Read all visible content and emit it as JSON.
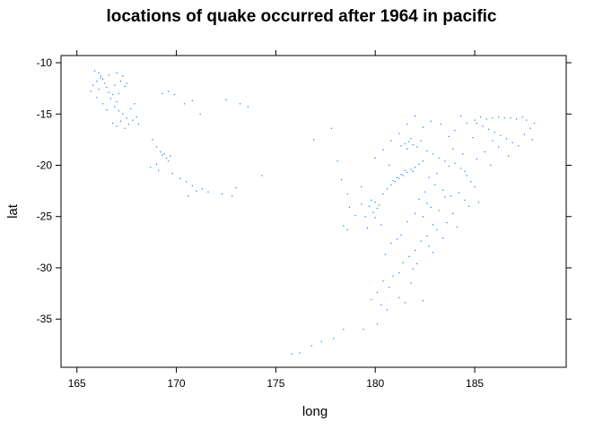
{
  "chart_data": {
    "type": "scatter",
    "title": "locations of quake occurred after 1964 in pacific",
    "xlabel": "long",
    "ylabel": "lat",
    "xlim": [
      164.2,
      189.6
    ],
    "ylim": [
      -39.7,
      -9.3
    ],
    "xticks": [
      165,
      170,
      175,
      180,
      185
    ],
    "yticks": [
      -10,
      -15,
      -20,
      -25,
      -30,
      -35
    ],
    "point_color": "#0080ff",
    "grid": false,
    "series": [
      {
        "points": [
          [
            165.9,
            -10.8
          ],
          [
            166.1,
            -11.0
          ],
          [
            166.2,
            -11.3
          ],
          [
            166.3,
            -11.6
          ],
          [
            166.0,
            -11.8
          ],
          [
            166.4,
            -12.0
          ],
          [
            165.8,
            -12.2
          ],
          [
            166.5,
            -12.4
          ],
          [
            166.1,
            -12.6
          ],
          [
            166.6,
            -12.9
          ],
          [
            166.2,
            -11.5
          ],
          [
            166.6,
            -11.2
          ],
          [
            167.0,
            -11.0
          ],
          [
            167.2,
            -11.8
          ],
          [
            167.4,
            -12.3
          ],
          [
            166.8,
            -13.1
          ],
          [
            166.7,
            -13.5
          ],
          [
            167.0,
            -13.8
          ],
          [
            166.9,
            -14.3
          ],
          [
            167.1,
            -14.7
          ],
          [
            167.3,
            -15.0
          ],
          [
            167.5,
            -15.4
          ],
          [
            167.2,
            -15.7
          ],
          [
            167.6,
            -16.0
          ],
          [
            167.0,
            -16.2
          ],
          [
            166.8,
            -15.9
          ],
          [
            167.8,
            -15.6
          ],
          [
            168.0,
            -15.3
          ],
          [
            167.4,
            -16.4
          ],
          [
            167.9,
            -14.0
          ],
          [
            165.7,
            -12.8
          ],
          [
            166.0,
            -13.4
          ],
          [
            166.3,
            -14.0
          ],
          [
            166.5,
            -14.6
          ],
          [
            167.1,
            -13.0
          ],
          [
            167.5,
            -12.0
          ],
          [
            167.7,
            -14.5
          ],
          [
            168.1,
            -16.0
          ],
          [
            166.9,
            -12.2
          ],
          [
            167.3,
            -11.3
          ],
          [
            168.8,
            -17.5
          ],
          [
            169.0,
            -18.2
          ],
          [
            169.2,
            -18.7
          ],
          [
            169.3,
            -19.0
          ],
          [
            169.5,
            -19.3
          ],
          [
            169.7,
            -19.1
          ],
          [
            169.4,
            -18.9
          ],
          [
            169.6,
            -19.6
          ],
          [
            169.0,
            -19.9
          ],
          [
            168.7,
            -20.2
          ],
          [
            169.1,
            -20.5
          ],
          [
            169.8,
            -20.8
          ],
          [
            170.2,
            -21.3
          ],
          [
            170.5,
            -21.6
          ],
          [
            170.8,
            -22.0
          ],
          [
            171.0,
            -22.5
          ],
          [
            171.3,
            -22.3
          ],
          [
            171.6,
            -22.6
          ],
          [
            170.6,
            -23.0
          ],
          [
            172.3,
            -22.8
          ],
          [
            172.8,
            -23.0
          ],
          [
            169.3,
            -13.0
          ],
          [
            169.6,
            -12.8
          ],
          [
            169.9,
            -13.1
          ],
          [
            170.4,
            -14.0
          ],
          [
            170.8,
            -13.7
          ],
          [
            171.2,
            -15.0
          ],
          [
            172.5,
            -13.6
          ],
          [
            173.2,
            -14.0
          ],
          [
            173.6,
            -14.3
          ],
          [
            174.3,
            -21.0
          ],
          [
            173.0,
            -22.2
          ],
          [
            175.8,
            -38.4
          ],
          [
            176.2,
            -38.3
          ],
          [
            176.8,
            -37.6
          ],
          [
            177.3,
            -37.2
          ],
          [
            177.9,
            -36.9
          ],
          [
            178.4,
            -36.0
          ],
          [
            176.9,
            -17.5
          ],
          [
            177.8,
            -16.4
          ],
          [
            178.1,
            -19.6
          ],
          [
            178.3,
            -21.4
          ],
          [
            178.6,
            -22.8
          ],
          [
            178.7,
            -24.1
          ],
          [
            178.4,
            -25.9
          ],
          [
            178.6,
            -26.3
          ],
          [
            179.0,
            -24.9
          ],
          [
            179.3,
            -23.8
          ],
          [
            179.5,
            -25.0
          ],
          [
            179.7,
            -24.0
          ],
          [
            179.8,
            -23.4
          ],
          [
            180.0,
            -23.6
          ],
          [
            180.1,
            -24.2
          ],
          [
            179.9,
            -24.6
          ],
          [
            180.2,
            -23.9
          ],
          [
            180.0,
            -25.1
          ],
          [
            180.3,
            -25.8
          ],
          [
            179.6,
            -26.1
          ],
          [
            180.4,
            -22.8
          ],
          [
            180.6,
            -22.3
          ],
          [
            180.8,
            -21.9
          ],
          [
            181.0,
            -21.6
          ],
          [
            181.2,
            -21.3
          ],
          [
            181.4,
            -21.0
          ],
          [
            181.6,
            -20.7
          ],
          [
            181.8,
            -20.4
          ],
          [
            182.0,
            -20.2
          ],
          [
            182.2,
            -19.9
          ],
          [
            182.4,
            -19.6
          ],
          [
            181.3,
            -20.9
          ],
          [
            181.5,
            -20.5
          ],
          [
            181.9,
            -20.6
          ],
          [
            181.1,
            -21.2
          ],
          [
            180.9,
            -21.5
          ],
          [
            181.7,
            -17.7
          ],
          [
            181.5,
            -17.9
          ],
          [
            181.9,
            -18.0
          ],
          [
            182.1,
            -18.2
          ],
          [
            181.3,
            -18.1
          ],
          [
            181.6,
            -18.4
          ],
          [
            182.3,
            -17.6
          ],
          [
            181.8,
            -17.4
          ],
          [
            182.6,
            -18.6
          ],
          [
            182.9,
            -18.9
          ],
          [
            183.2,
            -19.3
          ],
          [
            183.5,
            -19.6
          ],
          [
            183.7,
            -20.1
          ],
          [
            184.0,
            -19.8
          ],
          [
            184.3,
            -20.3
          ],
          [
            184.6,
            -21.0
          ],
          [
            184.8,
            -21.6
          ],
          [
            185.0,
            -22.1
          ],
          [
            184.2,
            -22.7
          ],
          [
            184.5,
            -23.4
          ],
          [
            184.7,
            -24.0
          ],
          [
            185.2,
            -23.6
          ],
          [
            183.8,
            -23.0
          ],
          [
            183.4,
            -22.4
          ],
          [
            183.0,
            -21.9
          ],
          [
            182.7,
            -21.2
          ],
          [
            182.5,
            -22.6
          ],
          [
            182.2,
            -23.3
          ],
          [
            182.8,
            -24.1
          ],
          [
            182.4,
            -25.0
          ],
          [
            182.9,
            -25.8
          ],
          [
            183.1,
            -26.3
          ],
          [
            182.6,
            -26.9
          ],
          [
            182.3,
            -27.4
          ],
          [
            182.7,
            -27.9
          ],
          [
            182.0,
            -28.3
          ],
          [
            181.7,
            -28.9
          ],
          [
            181.4,
            -29.5
          ],
          [
            181.9,
            -30.1
          ],
          [
            181.2,
            -30.5
          ],
          [
            180.9,
            -30.8
          ],
          [
            180.4,
            -31.3
          ],
          [
            180.7,
            -31.9
          ],
          [
            180.1,
            -32.4
          ],
          [
            179.8,
            -33.1
          ],
          [
            180.3,
            -33.6
          ],
          [
            180.6,
            -34.1
          ],
          [
            180.1,
            -35.5
          ],
          [
            179.4,
            -36.0
          ],
          [
            181.2,
            -32.9
          ],
          [
            181.5,
            -33.4
          ],
          [
            182.4,
            -33.2
          ],
          [
            181.8,
            -31.5
          ],
          [
            182.1,
            -29.6
          ],
          [
            182.9,
            -28.5
          ],
          [
            183.4,
            -27.1
          ],
          [
            183.6,
            -25.6
          ],
          [
            183.9,
            -24.7
          ],
          [
            184.1,
            -26.0
          ],
          [
            183.2,
            -24.4
          ],
          [
            182.0,
            -24.7
          ],
          [
            181.6,
            -25.5
          ],
          [
            181.3,
            -26.8
          ],
          [
            180.8,
            -27.6
          ],
          [
            180.5,
            -28.7
          ],
          [
            181.1,
            -27.2
          ],
          [
            185.0,
            -15.6
          ],
          [
            185.3,
            -15.3
          ],
          [
            185.6,
            -15.5
          ],
          [
            185.9,
            -15.4
          ],
          [
            186.2,
            -15.3
          ],
          [
            186.5,
            -15.4
          ],
          [
            186.8,
            -15.4
          ],
          [
            187.1,
            -15.5
          ],
          [
            187.4,
            -15.3
          ],
          [
            187.6,
            -15.6
          ],
          [
            185.1,
            -15.9
          ],
          [
            185.4,
            -16.2
          ],
          [
            185.7,
            -16.5
          ],
          [
            186.0,
            -16.8
          ],
          [
            186.3,
            -17.1
          ],
          [
            186.6,
            -17.4
          ],
          [
            186.9,
            -17.8
          ],
          [
            187.2,
            -18.1
          ],
          [
            187.5,
            -17.0
          ],
          [
            187.8,
            -16.4
          ],
          [
            188.0,
            -15.9
          ],
          [
            187.9,
            -17.5
          ],
          [
            184.3,
            -15.2
          ],
          [
            184.6,
            -15.9
          ],
          [
            184.0,
            -16.6
          ],
          [
            183.7,
            -17.2
          ],
          [
            183.3,
            -16.0
          ],
          [
            182.8,
            -15.7
          ],
          [
            182.4,
            -16.3
          ],
          [
            182.0,
            -15.2
          ],
          [
            181.6,
            -16.0
          ],
          [
            181.2,
            -16.9
          ],
          [
            180.8,
            -17.6
          ],
          [
            180.4,
            -18.5
          ],
          [
            180.0,
            -19.3
          ],
          [
            183.9,
            -18.4
          ],
          [
            184.4,
            -18.9
          ],
          [
            185.1,
            -19.4
          ],
          [
            185.8,
            -20.0
          ],
          [
            185.5,
            -18.7
          ],
          [
            186.2,
            -18.2
          ],
          [
            186.7,
            -19.1
          ],
          [
            185.9,
            -17.6
          ],
          [
            184.9,
            -17.3
          ],
          [
            184.5,
            -20.6
          ],
          [
            183.1,
            -20.8
          ],
          [
            182.6,
            -23.7
          ],
          [
            183.5,
            -23.1
          ],
          [
            180.7,
            -20.0
          ],
          [
            179.3,
            -22.1
          ]
        ]
      }
    ]
  }
}
